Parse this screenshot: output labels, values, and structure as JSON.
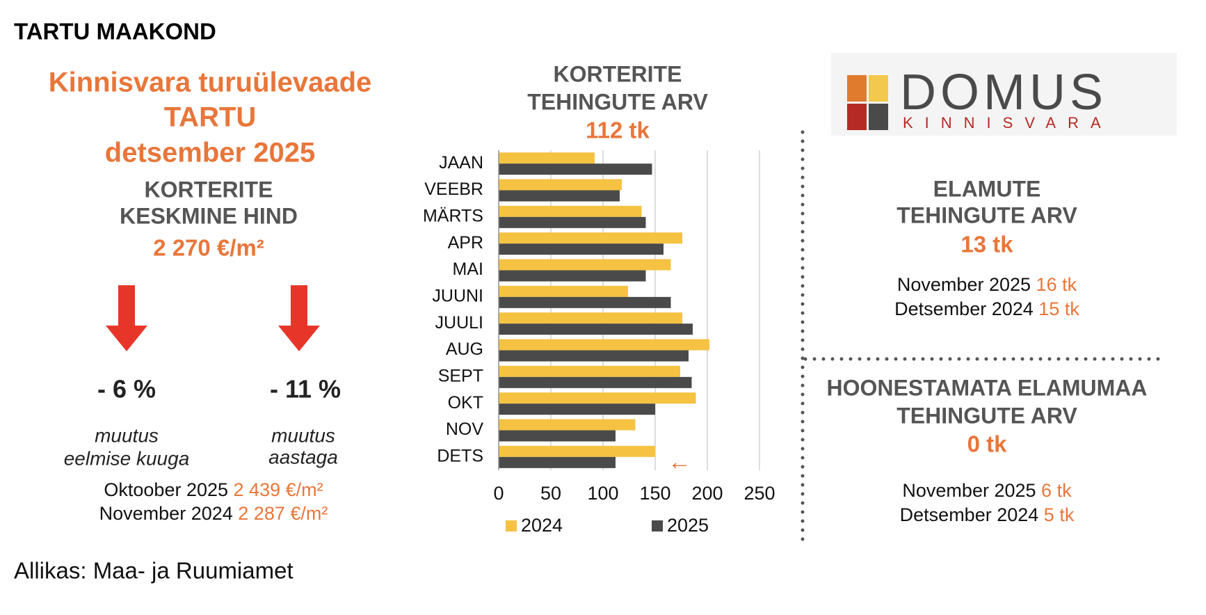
{
  "header": {
    "region": "TARTU MAAKOND",
    "title_lines": [
      "Kinnisvara turuülevaade",
      "TARTU",
      "detsember 2025"
    ]
  },
  "price": {
    "heading_lines": [
      "KORTERITE",
      "KESKMINE HIND"
    ],
    "value": "2 270 €/m²",
    "changes": [
      {
        "value": "- 6 %",
        "caption_lines": [
          "muutus",
          "eelmise kuuga"
        ]
      },
      {
        "value": "- 11 %",
        "caption_lines": [
          "muutus",
          "aastaga"
        ]
      }
    ],
    "comparisons": [
      {
        "label": "Oktoober 2025",
        "value": "2 439 €/m²"
      },
      {
        "label": "November 2024",
        "value": "2 287 €/m²"
      }
    ]
  },
  "source": "Allikas: Maa- ja Ruumiamet",
  "chart_data": {
    "type": "hbar",
    "title_lines": [
      "KORTERITE",
      "TEHINGUTE ARV"
    ],
    "subtitle": "112 tk",
    "categories": [
      "JAAN",
      "VEEBR",
      "MÄRTS",
      "APR",
      "MAI",
      "JUUNI",
      "JUULI",
      "AUG",
      "SEPT",
      "OKT",
      "NOV",
      "DETS"
    ],
    "series": [
      {
        "name": "2024",
        "color": "#f5c242",
        "values": [
          92,
          118,
          137,
          176,
          165,
          124,
          176,
          202,
          174,
          189,
          131,
          150
        ]
      },
      {
        "name": "2025",
        "color": "#4a4a4a",
        "values": [
          147,
          116,
          141,
          158,
          141,
          165,
          186,
          182,
          185,
          150,
          112,
          112
        ]
      }
    ],
    "xlim": [
      0,
      250
    ],
    "xticks": [
      0,
      50,
      100,
      150,
      200,
      250
    ],
    "grid": true,
    "legend": "bottom"
  },
  "logo": {
    "name": "DOMUS",
    "tagline": "KINNISVARA"
  },
  "houses": {
    "heading_lines": [
      "ELAMUTE",
      "TEHINGUTE ARV"
    ],
    "value": "13 tk",
    "comparisons": [
      {
        "label": "November 2025",
        "value": "16 tk"
      },
      {
        "label": "Detsember 2024",
        "value": "15 tk"
      }
    ]
  },
  "land": {
    "heading_lines": [
      "HOONESTAMATA ELAMUMAA",
      "TEHINGUTE ARV"
    ],
    "value": "0 tk",
    "comparisons": [
      {
        "label": "November 2025",
        "value": "6 tk"
      },
      {
        "label": "Detsember 2024",
        "value": "5 tk"
      }
    ]
  }
}
